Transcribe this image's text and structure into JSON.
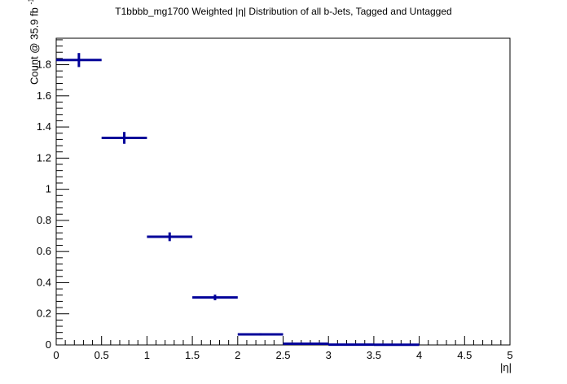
{
  "chart_data": {
    "type": "scatter",
    "title": "T1bbbb_mg1700 Weighted |η| Distribution of all b-Jets, Tagged and Untagged",
    "xlabel": "|η|",
    "ylabel_main": "Count @ 35.9 fb",
    "ylabel_sup": "-1",
    "xlim": [
      0,
      5
    ],
    "ylim": [
      0,
      1.97
    ],
    "x_ticks": [
      "0",
      "0.5",
      "1",
      "1.5",
      "2",
      "2.5",
      "3",
      "3.5",
      "4",
      "4.5",
      "5"
    ],
    "y_ticks": [
      "0",
      "0.2",
      "0.4",
      "0.6",
      "0.8",
      "1",
      "1.2",
      "1.4",
      "1.6",
      "1.8"
    ],
    "bins": [
      {
        "x_low": 0.0,
        "x_high": 0.5,
        "y": 1.83,
        "err": 0.045
      },
      {
        "x_low": 0.5,
        "x_high": 1.0,
        "y": 1.33,
        "err": 0.038
      },
      {
        "x_low": 1.0,
        "x_high": 1.5,
        "y": 0.695,
        "err": 0.028
      },
      {
        "x_low": 1.5,
        "x_high": 2.0,
        "y": 0.305,
        "err": 0.018
      },
      {
        "x_low": 2.0,
        "x_high": 2.5,
        "y": 0.068,
        "err": 0.008
      },
      {
        "x_low": 2.5,
        "x_high": 3.0,
        "y": 0.008,
        "err": 0.003
      },
      {
        "x_low": 3.0,
        "x_high": 3.5,
        "y": 0.002,
        "err": 0.001
      },
      {
        "x_low": 3.5,
        "x_high": 4.0,
        "y": 0.001,
        "err": 0.0005
      }
    ],
    "marker_color": "#000099",
    "grid": false,
    "legend": "none"
  }
}
